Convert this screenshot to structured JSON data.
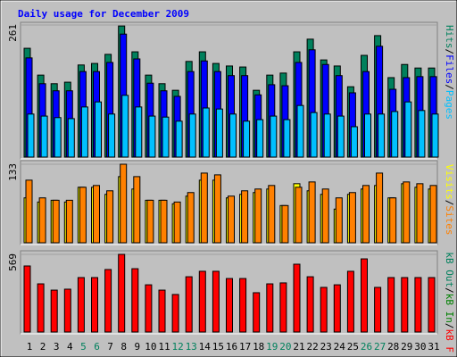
{
  "chart_data": [
    {
      "type": "bar",
      "title": "Daily usage for December 2009",
      "ylim": [
        0,
        261
      ],
      "yticks": [
        261
      ],
      "legend_separator": "/",
      "series": [
        {
          "name": "Hits",
          "color": "#00805c",
          "values": [
            215,
            162,
            145,
            148,
            182,
            185,
            203,
            259,
            208,
            162,
            145,
            132,
            189,
            208,
            185,
            180,
            178,
            132,
            162,
            166,
            208,
            233,
            192,
            180,
            139,
            201,
            240,
            157,
            183,
            176,
            176
          ]
        },
        {
          "name": "Files",
          "color": "#0000ff",
          "values": [
            196,
            145,
            131,
            131,
            169,
            169,
            187,
            243,
            194,
            146,
            131,
            120,
            169,
            190,
            169,
            161,
            161,
            123,
            143,
            141,
            187,
            212,
            183,
            161,
            127,
            169,
            219,
            134,
            157,
            159,
            159
          ]
        },
        {
          "name": "Pages",
          "color": "#00c0ff",
          "values": [
            85,
            81,
            78,
            76,
            99,
            109,
            85,
            122,
            99,
            81,
            79,
            71,
            85,
            97,
            95,
            85,
            71,
            74,
            81,
            74,
            102,
            88,
            85,
            81,
            60,
            85,
            85,
            90,
            109,
            92,
            85
          ]
        }
      ]
    },
    {
      "type": "bar",
      "ylim": [
        0,
        133
      ],
      "yticks": [
        133
      ],
      "legend_separator": "/",
      "series": [
        {
          "name": "Visits",
          "color": "#ffff00",
          "values": [
            76,
            69,
            72,
            69,
            94,
            94,
            82,
            112,
            91,
            72,
            72,
            66,
            79,
            106,
            106,
            76,
            82,
            85,
            91,
            63,
            100,
            88,
            82,
            57,
            82,
            91,
            97,
            76,
            100,
            94,
            91
          ]
        },
        {
          "name": "Sites",
          "color": "#ff8000",
          "values": [
            106,
            76,
            72,
            72,
            94,
            97,
            88,
            133,
            112,
            72,
            72,
            69,
            85,
            118,
            115,
            79,
            88,
            91,
            97,
            63,
            94,
            103,
            91,
            76,
            85,
            97,
            118,
            76,
            103,
            100,
            97
          ]
        }
      ]
    },
    {
      "type": "bar",
      "ylim": [
        0,
        569
      ],
      "yticks": [
        569
      ],
      "legend_separator": "/",
      "categories": [
        "1",
        "2",
        "3",
        "4",
        "5",
        "6",
        "7",
        "8",
        "9",
        "10",
        "11",
        "12",
        "13",
        "14",
        "15",
        "16",
        "17",
        "18",
        "19",
        "20",
        "21",
        "22",
        "23",
        "24",
        "25",
        "26",
        "27",
        "28",
        "29",
        "30",
        "31"
      ],
      "category_colors": [
        "#000000",
        "#000000",
        "#000000",
        "#000000",
        "#00805c",
        "#00805c",
        "#000000",
        "#000000",
        "#000000",
        "#000000",
        "#000000",
        "#00805c",
        "#00805c",
        "#000000",
        "#000000",
        "#000000",
        "#000000",
        "#000000",
        "#00805c",
        "#00805c",
        "#000000",
        "#000000",
        "#000000",
        "#000000",
        "#000000",
        "#00805c",
        "#00805c",
        "#000000",
        "#000000",
        "#000000",
        "#000000"
      ],
      "series": [
        {
          "name": "kB Out",
          "color": "#00805c"
        },
        {
          "name": "kB In",
          "color": "#008000"
        },
        {
          "name": "kB F",
          "color": "#ff0000",
          "values": [
            484,
            353,
            307,
            314,
            399,
            399,
            458,
            569,
            464,
            346,
            307,
            275,
            405,
            445,
            445,
            392,
            392,
            288,
            353,
            360,
            497,
            405,
            327,
            346,
            445,
            536,
            327,
            399,
            399,
            399,
            399
          ]
        }
      ]
    }
  ]
}
